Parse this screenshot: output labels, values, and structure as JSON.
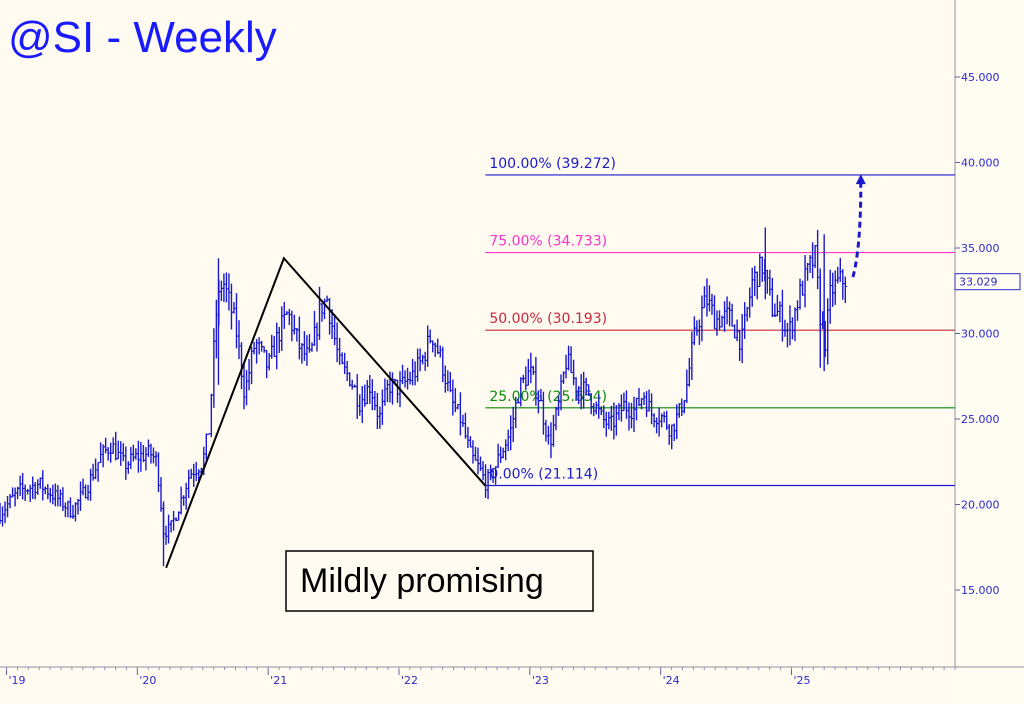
{
  "chart_data": {
    "type": "bar",
    "title": "@SI - Weekly",
    "y_ticks": [
      "45.000",
      "40.000",
      "35.000",
      "30.000",
      "25.000",
      "20.000",
      "15.000"
    ],
    "y_tick_values": [
      45,
      40,
      35,
      30,
      25,
      20,
      15
    ],
    "x_ticks": [
      "'19",
      "'20",
      "'21",
      "'22",
      "'23",
      "'24",
      "'25"
    ],
    "x_tick_values": [
      2019,
      2020,
      2021,
      2022,
      2023,
      2024,
      2025
    ],
    "ylim": [
      10.5,
      49.5
    ],
    "xlim": [
      2018.95,
      2026.25
    ],
    "last_price": "33.029",
    "last_value": 33.029,
    "price_color": "#1a1acc",
    "fib_start_x": 2022.66,
    "fib_end_x": 2026.25,
    "fib_levels": [
      {
        "label": "100.00% (39.272)",
        "value": 39.272,
        "color": "#1a1acc"
      },
      {
        "label": "75.00% (34.733)",
        "value": 34.733,
        "color": "#ff33cc"
      },
      {
        "label": "50.00% (30.193)",
        "value": 30.193,
        "color": "#c8283c"
      },
      {
        "label": "25.00% (25.654)",
        "value": 25.654,
        "color": "#0a8a0a"
      },
      {
        "label": "0.00% (21.114)",
        "value": 21.114,
        "color": "#1a1acc"
      }
    ],
    "abc_pattern": [
      {
        "x": 2020.22,
        "y": 16.3
      },
      {
        "x": 2021.12,
        "y": 34.4
      },
      {
        "x": 2022.66,
        "y": 21.1
      }
    ],
    "projection": [
      {
        "x": 2025.47,
        "y": 33.3
      },
      {
        "x": 2025.53,
        "y": 39.2
      }
    ],
    "price_path": [
      [
        2018.95,
        19.5
      ],
      [
        2019.1,
        20.8
      ],
      [
        2019.25,
        21.2
      ],
      [
        2019.4,
        20.3
      ],
      [
        2019.5,
        19.6
      ],
      [
        2019.6,
        20.8
      ],
      [
        2019.72,
        22.8
      ],
      [
        2019.8,
        23.5
      ],
      [
        2019.9,
        22.3
      ],
      [
        2020.0,
        22.8
      ],
      [
        2020.1,
        23.0
      ],
      [
        2020.15,
        22.5
      ],
      [
        2020.2,
        18.5
      ],
      [
        2020.25,
        18.5
      ],
      [
        2020.33,
        20.2
      ],
      [
        2020.4,
        21.8
      ],
      [
        2020.5,
        22.5
      ],
      [
        2020.55,
        24.5
      ],
      [
        2020.6,
        31.0
      ],
      [
        2020.65,
        33.2
      ],
      [
        2020.75,
        30.5
      ],
      [
        2020.82,
        26.5
      ],
      [
        2020.9,
        29.5
      ],
      [
        2021.0,
        28.0
      ],
      [
        2021.08,
        30.0
      ],
      [
        2021.15,
        31.2
      ],
      [
        2021.25,
        29.0
      ],
      [
        2021.32,
        28.5
      ],
      [
        2021.4,
        31.5
      ],
      [
        2021.45,
        32.0
      ],
      [
        2021.55,
        28.0
      ],
      [
        2021.62,
        27.5
      ],
      [
        2021.7,
        26.0
      ],
      [
        2021.78,
        27.0
      ],
      [
        2021.85,
        25.0
      ],
      [
        2021.92,
        27.0
      ],
      [
        2022.0,
        26.8
      ],
      [
        2022.1,
        27.5
      ],
      [
        2022.18,
        28.5
      ],
      [
        2022.25,
        30.0
      ],
      [
        2022.32,
        28.5
      ],
      [
        2022.4,
        26.0
      ],
      [
        2022.47,
        25.0
      ],
      [
        2022.55,
        22.8
      ],
      [
        2022.62,
        22.0
      ],
      [
        2022.66,
        21.3
      ],
      [
        2022.7,
        21.5
      ],
      [
        2022.75,
        22.5
      ],
      [
        2022.85,
        24.2
      ],
      [
        2022.92,
        26.8
      ],
      [
        2023.0,
        27.8
      ],
      [
        2023.08,
        26.0
      ],
      [
        2023.15,
        23.5
      ],
      [
        2023.22,
        25.8
      ],
      [
        2023.28,
        28.5
      ],
      [
        2023.35,
        27.0
      ],
      [
        2023.45,
        26.5
      ],
      [
        2023.55,
        25.0
      ],
      [
        2023.62,
        24.6
      ],
      [
        2023.72,
        25.8
      ],
      [
        2023.8,
        25.5
      ],
      [
        2023.87,
        26.5
      ],
      [
        2023.93,
        25.3
      ],
      [
        2024.0,
        25.2
      ],
      [
        2024.08,
        24.4
      ],
      [
        2024.15,
        25.5
      ],
      [
        2024.2,
        27.0
      ],
      [
        2024.25,
        29.5
      ],
      [
        2024.3,
        31.0
      ],
      [
        2024.35,
        32.0
      ],
      [
        2024.42,
        30.8
      ],
      [
        2024.52,
        31.0
      ],
      [
        2024.62,
        29.5
      ],
      [
        2024.7,
        33.0
      ],
      [
        2024.78,
        34.0
      ],
      [
        2024.85,
        31.5
      ],
      [
        2024.92,
        31.0
      ],
      [
        2024.98,
        30.0
      ],
      [
        2025.05,
        32.0
      ],
      [
        2025.12,
        33.5
      ],
      [
        2025.18,
        34.5
      ],
      [
        2025.22,
        31.0
      ],
      [
        2025.26,
        29.5
      ],
      [
        2025.3,
        32.5
      ],
      [
        2025.36,
        33.0
      ],
      [
        2025.42,
        33.2
      ]
    ]
  },
  "annotation": {
    "text": "Mildly promising"
  }
}
